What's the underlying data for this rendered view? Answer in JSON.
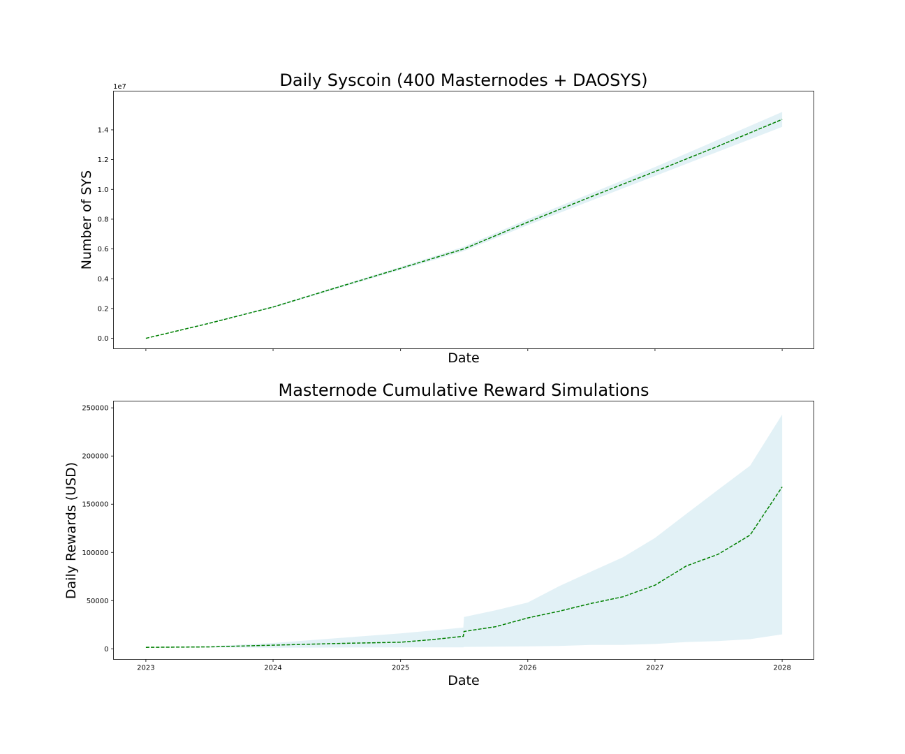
{
  "chart_data": [
    {
      "type": "line",
      "title": "Daily Syscoin (400 Masternodes + DAOSYS)",
      "xlabel": "Date",
      "ylabel": "Number of SYS",
      "y_offset_label": "1e7",
      "x_is_date": true,
      "xlim": [
        "2022-09-30",
        "2028-04-01"
      ],
      "ylim": [
        -0.07,
        1.66
      ],
      "y_ticks": [
        0.0,
        0.2,
        0.4,
        0.6,
        0.8,
        1.0,
        1.2,
        1.4
      ],
      "y_tick_labels": [
        "0.0",
        "0.2",
        "0.4",
        "0.6",
        "0.8",
        "1.0",
        "1.2",
        "1.4"
      ],
      "x_ticks": [
        "2023-01-01",
        "2024-01-01",
        "2025-01-01",
        "2026-01-01",
        "2027-01-01",
        "2028-01-01"
      ],
      "x_tick_labels_visible": false,
      "legend": "none",
      "grid": false,
      "series": [
        {
          "kind": "mean",
          "color": "#008000",
          "linestyle": "dashed",
          "x": [
            "2023-01-01",
            "2023-07-01",
            "2024-01-01",
            "2024-07-01",
            "2025-01-01",
            "2025-07-01",
            "2026-01-01",
            "2026-07-01",
            "2027-01-01",
            "2027-07-01",
            "2028-01-01"
          ],
          "y": [
            0.0,
            0.1,
            0.21,
            0.34,
            0.47,
            0.6,
            0.78,
            0.95,
            1.12,
            1.29,
            1.47
          ]
        },
        {
          "kind": "band",
          "color": "#add8e6",
          "x": [
            "2023-01-01",
            "2024-01-01",
            "2025-01-01",
            "2025-07-01",
            "2026-01-01",
            "2027-01-01",
            "2028-01-01"
          ],
          "lower": [
            0.0,
            0.205,
            0.46,
            0.585,
            0.76,
            1.09,
            1.42
          ],
          "upper": [
            0.0,
            0.215,
            0.48,
            0.615,
            0.8,
            1.15,
            1.52
          ]
        }
      ]
    },
    {
      "type": "line",
      "title": "Masternode Cumulative Reward Simulations",
      "xlabel": "Date",
      "ylabel": "Daily Rewards (USD)",
      "x_is_date": true,
      "xlim": [
        "2022-09-30",
        "2028-04-01"
      ],
      "ylim": [
        -11000,
        257000
      ],
      "y_ticks": [
        0,
        50000,
        100000,
        150000,
        200000,
        250000
      ],
      "y_tick_labels": [
        "0",
        "50000",
        "100000",
        "150000",
        "200000",
        "250000"
      ],
      "x_ticks": [
        "2023-01-01",
        "2024-01-01",
        "2025-01-01",
        "2026-01-01",
        "2027-01-01",
        "2028-01-01"
      ],
      "x_tick_labels": [
        "2023",
        "2024",
        "2025",
        "2026",
        "2027",
        "2028"
      ],
      "legend": "none",
      "grid": false,
      "series": [
        {
          "kind": "mean",
          "color": "#008000",
          "linestyle": "dashed",
          "x": [
            "2023-01-01",
            "2023-07-01",
            "2024-01-01",
            "2024-07-01",
            "2025-01-01",
            "2025-04-01",
            "2025-06-30",
            "2025-07-02",
            "2025-10-01",
            "2026-01-01",
            "2026-04-01",
            "2026-07-01",
            "2026-10-01",
            "2027-01-01",
            "2027-04-01",
            "2027-07-01",
            "2027-10-01",
            "2028-01-01"
          ],
          "y": [
            1500,
            2000,
            3800,
            5500,
            6800,
            9500,
            13000,
            18000,
            23000,
            32000,
            39000,
            47000,
            54000,
            66000,
            86000,
            98000,
            118000,
            168000
          ]
        },
        {
          "kind": "band",
          "color": "#add8e6",
          "x": [
            "2023-01-01",
            "2023-07-01",
            "2024-01-01",
            "2024-07-01",
            "2025-01-01",
            "2025-04-01",
            "2025-06-30",
            "2025-07-02",
            "2025-10-01",
            "2026-01-01",
            "2026-04-01",
            "2026-07-01",
            "2026-10-01",
            "2027-01-01",
            "2027-04-01",
            "2027-07-01",
            "2027-10-01",
            "2028-01-01"
          ],
          "lower": [
            1500,
            1500,
            1200,
            1300,
            1500,
            1500,
            1500,
            2000,
            2200,
            2500,
            3000,
            4000,
            4000,
            5000,
            7000,
            8000,
            10000,
            15000
          ],
          "upper": [
            1500,
            2600,
            6000,
            11000,
            16000,
            19000,
            22000,
            33000,
            40000,
            48000,
            65000,
            80000,
            95000,
            115000,
            140000,
            165000,
            190000,
            243000
          ]
        }
      ]
    }
  ]
}
